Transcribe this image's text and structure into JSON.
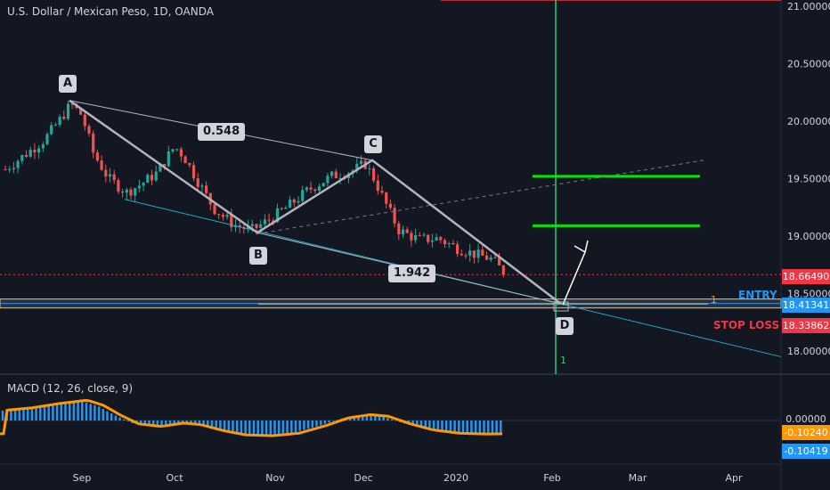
{
  "symbol_title": "U.S. Dollar / Mexican Peso, 1D, OANDA",
  "macd_title": "MACD (12, 26, close, 9)",
  "price_axis": [
    "21.00000",
    "20.50000",
    "20.00000",
    "19.50000",
    "19.00000",
    "18.50000",
    "18.00000"
  ],
  "time_axis": [
    "Sep",
    "Oct",
    "Nov",
    "Dec",
    "2020",
    "Feb",
    "Mar",
    "Apr"
  ],
  "price_tags": {
    "current": "18.66490",
    "entry": "18.41341",
    "stop": "18.33862",
    "macd_zero": "0.00000",
    "macd_signal": "-0.10240",
    "macd_line": "-0.10419"
  },
  "colors": {
    "background": "#131722",
    "bull": "#26a69a",
    "bear": "#ef5350",
    "green_line": "#00e600",
    "vertical": "#2ecc71",
    "entry": "#2196f3",
    "stop": "#f23645",
    "macd_signal": "#ff9800"
  },
  "pattern_points": {
    "A": "A",
    "B": "B",
    "C": "C",
    "D": "D"
  },
  "ratios": {
    "ac": "0.548",
    "bd": "1.942"
  },
  "zones": {
    "entry": "ENTRY",
    "stop": "STOP LOSS",
    "fib_marker": "1",
    "cycle_marker": "1"
  },
  "chart_data": {
    "type": "candlestick",
    "x_labels": [
      "Sep",
      "Oct",
      "Nov",
      "Dec",
      "2020",
      "Feb",
      "Mar",
      "Apr"
    ],
    "y_ticks": [
      21.0,
      20.5,
      20.0,
      19.5,
      19.0,
      18.5,
      18.0
    ],
    "ylim": [
      17.95,
      21.05
    ],
    "pattern": {
      "A": 20.18,
      "B": 19.03,
      "C": 19.66,
      "D": 18.41,
      "ac_ratio": 0.548,
      "bd_ratio": 1.942
    },
    "levels": {
      "current": 18.6649,
      "entry": 18.41341,
      "stop_loss": 18.33862,
      "target_1": 19.09,
      "target_2": 19.52
    },
    "macd": {
      "macd": -0.10419,
      "signal": -0.1024,
      "zero": 0.0
    }
  }
}
